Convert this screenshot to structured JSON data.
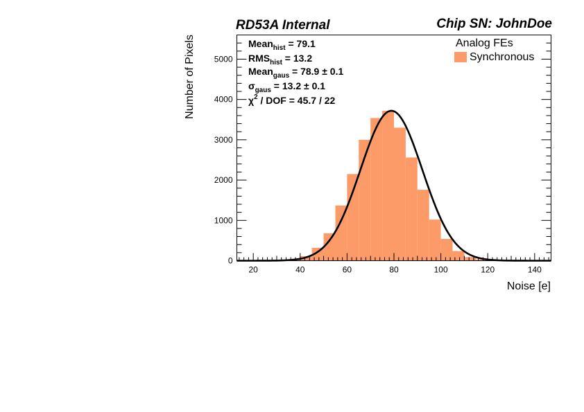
{
  "chart_data": {
    "type": "bar",
    "title_left": "RD53A Internal",
    "title_right": "Chip SN: JohnDoe",
    "xlabel": "Noise [e]",
    "ylabel": "Number of Pixels",
    "xlim": [
      13,
      147
    ],
    "ylim": [
      0,
      5600
    ],
    "x_ticks": [
      20,
      40,
      60,
      80,
      100,
      120,
      140
    ],
    "y_ticks": [
      0,
      1000,
      2000,
      3000,
      4000,
      5000
    ],
    "legend": {
      "header": "Analog FEs",
      "entries": [
        {
          "name": "Synchronous",
          "color": "#fd9b68"
        }
      ]
    },
    "stats": {
      "mean_hist": {
        "label": "Mean",
        "sub": "hist",
        "text": " = 79.1"
      },
      "rms_hist": {
        "label": "RMS",
        "sub": "hist",
        "text": " = 13.2"
      },
      "mean_gaus": {
        "label": "Mean",
        "sub": "gaus",
        "text": " = 78.9 ± 0.1"
      },
      "sigma_gaus": {
        "label": "σ",
        "sub": "gaus",
        "text": " = 13.2 ± 0.1"
      },
      "chi2": {
        "label": "χ",
        "sup": "2",
        "text": " / DOF = 45.7 / 22"
      }
    },
    "bin_width": 5,
    "bins_low": [
      30,
      35,
      40,
      45,
      50,
      55,
      60,
      65,
      70,
      75,
      80,
      85,
      90,
      95,
      100,
      105,
      110,
      115,
      120,
      125
    ],
    "counts": [
      10,
      40,
      110,
      320,
      680,
      1370,
      2150,
      3000,
      3540,
      3720,
      3300,
      2560,
      1760,
      1020,
      540,
      240,
      90,
      30,
      10,
      3
    ],
    "fit": {
      "type": "gaussian",
      "mean": 78.9,
      "sigma": 13.2,
      "amplitude": 3720,
      "color": "#000000"
    },
    "colors": {
      "histogram": "#fd9b68",
      "axis": "#000000"
    }
  }
}
